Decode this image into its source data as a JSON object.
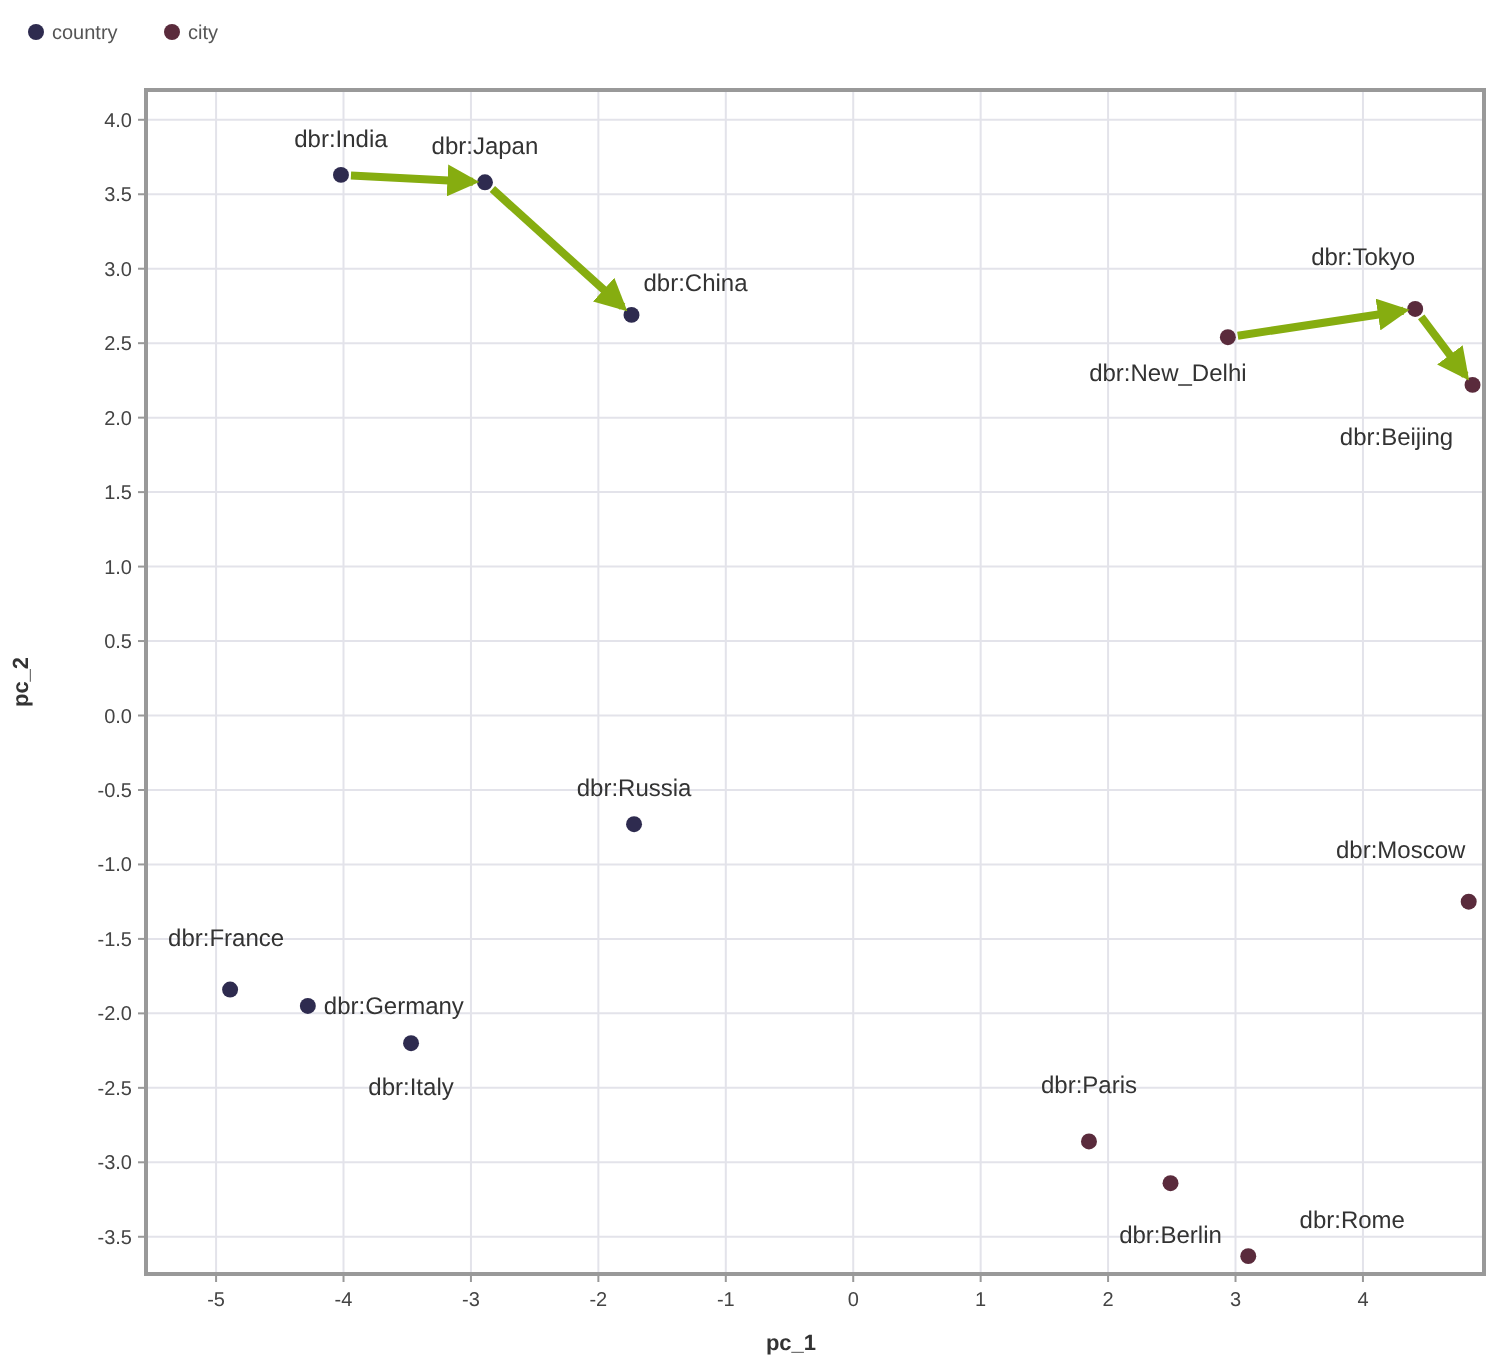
{
  "chart_data": {
    "type": "scatter",
    "xlabel": "pc_1",
    "ylabel": "pc_2",
    "xlim": [
      -5.55,
      4.95
    ],
    "ylim": [
      -3.75,
      4.2
    ],
    "xticks": [
      -5,
      -4,
      -3,
      -2,
      -1,
      0,
      1,
      2,
      3,
      4
    ],
    "yticks": [
      {
        "value": 4,
        "label": "4.0"
      },
      {
        "value": 3.5,
        "label": "3.5"
      },
      {
        "value": 3,
        "label": "3.0"
      },
      {
        "value": 2.5,
        "label": "2.5"
      },
      {
        "value": 2,
        "label": "2.0"
      },
      {
        "value": 1.5,
        "label": "1.5"
      },
      {
        "value": 1,
        "label": "1.0"
      },
      {
        "value": 0.5,
        "label": "0.5"
      },
      {
        "value": 0,
        "label": "0.0"
      },
      {
        "value": -0.5,
        "label": "-0.5"
      },
      {
        "value": -1,
        "label": "-1.0"
      },
      {
        "value": -1.5,
        "label": "-1.5"
      },
      {
        "value": -2,
        "label": "-2.0"
      },
      {
        "value": -2.5,
        "label": "-2.5"
      },
      {
        "value": -3,
        "label": "-3.0"
      },
      {
        "value": -3.5,
        "label": "-3.5"
      }
    ],
    "grid": true,
    "legend": "top left",
    "marker": "circle",
    "series": [
      {
        "name": "country",
        "color": "#2e2b4f",
        "x": [
          -4.02,
          -2.89,
          -1.74,
          -1.72,
          -4.89,
          -4.28,
          -3.47
        ],
        "values": [
          3.63,
          3.58,
          2.69,
          -0.73,
          -1.84,
          -1.95,
          -2.2
        ]
      },
      {
        "name": "city",
        "color": "#5a2b3c",
        "x": [
          2.94,
          4.41,
          4.86,
          4.83,
          1.85,
          2.49,
          3.1
        ],
        "values": [
          2.54,
          2.73,
          2.22,
          -1.25,
          -2.86,
          -3.14,
          -3.63
        ]
      }
    ],
    "annotations": [
      {
        "text": "dbr:India",
        "x": -4.02,
        "y": 3.63
      },
      {
        "text": "dbr:Japan",
        "x": -2.89,
        "y": 3.58
      },
      {
        "text": "dbr:China",
        "x": -1.74,
        "y": 2.69
      },
      {
        "text": "dbr:Russia",
        "x": -1.72,
        "y": -0.73
      },
      {
        "text": "dbr:France",
        "x": -4.89,
        "y": -1.84
      },
      {
        "text": "dbr:Germany",
        "x": -4.28,
        "y": -1.95
      },
      {
        "text": "dbr:Italy",
        "x": -3.47,
        "y": -2.2
      },
      {
        "text": "dbr:New_Delhi",
        "x": 2.94,
        "y": 2.54
      },
      {
        "text": "dbr:Tokyo",
        "x": 4.41,
        "y": 2.73
      },
      {
        "text": "dbr:Beijing",
        "x": 4.86,
        "y": 2.22
      },
      {
        "text": "dbr:Moscow",
        "x": 4.83,
        "y": -1.25
      },
      {
        "text": "dbr:Paris",
        "x": 1.85,
        "y": -2.86
      },
      {
        "text": "dbr:Berlin",
        "x": 2.49,
        "y": -3.14
      },
      {
        "text": "dbr:Rome",
        "x": 3.1,
        "y": -3.63
      }
    ]
  }
}
